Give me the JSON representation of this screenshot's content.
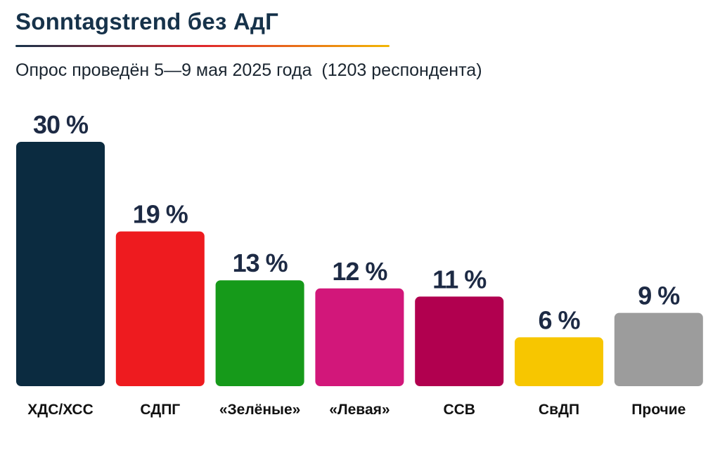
{
  "header": {
    "title": "Sonntagstrend без АдГ",
    "subtitle": "Опрос проведён 5—9 мая 2025 года  (1203 респондента)",
    "rule_gradient": [
      "#16324a",
      "#e0262c",
      "#f2b705"
    ]
  },
  "chart_data": {
    "type": "bar",
    "title": "Sonntagstrend без АдГ",
    "subtitle": "Опрос проведён 5—9 мая 2025 года  (1203 респондента)",
    "categories": [
      "ХДС/ХСС",
      "СДПГ",
      "«Зелёные»",
      "«Левая»",
      "ССВ",
      "СвДП",
      "Прочие"
    ],
    "values": [
      30,
      19,
      13,
      12,
      11,
      6,
      9
    ],
    "value_labels": [
      "30 %",
      "19 %",
      "13 %",
      "12 %",
      "11 %",
      "6 %",
      "9 %"
    ],
    "colors": [
      "#0b2b40",
      "#ee1b1f",
      "#169a1a",
      "#d2177a",
      "#b1004f",
      "#f7c600",
      "#9c9c9c"
    ],
    "xlabel": "",
    "ylabel": "",
    "ylim": [
      0,
      30
    ],
    "grid": false,
    "legend": "none"
  }
}
